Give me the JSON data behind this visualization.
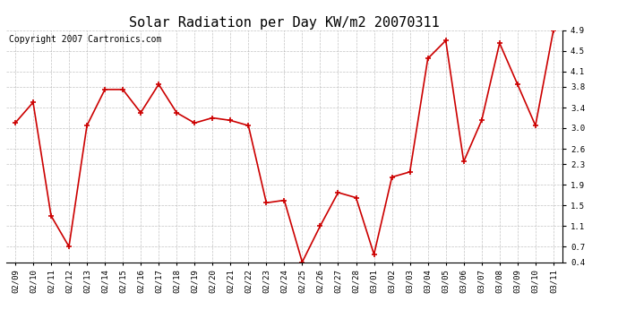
{
  "title": "Solar Radiation per Day KW/m2 20070311",
  "copyright": "Copyright 2007 Cartronics.com",
  "labels": [
    "02/09",
    "02/10",
    "02/11",
    "02/12",
    "02/13",
    "02/14",
    "02/15",
    "02/16",
    "02/17",
    "02/18",
    "02/19",
    "02/20",
    "02/21",
    "02/22",
    "02/23",
    "02/24",
    "02/25",
    "02/26",
    "02/27",
    "02/28",
    "03/01",
    "03/02",
    "03/03",
    "03/04",
    "03/05",
    "03/06",
    "03/07",
    "03/08",
    "03/09",
    "03/10",
    "03/11"
  ],
  "values": [
    3.1,
    3.5,
    1.3,
    0.7,
    3.05,
    3.75,
    3.75,
    3.3,
    3.85,
    3.3,
    3.1,
    3.2,
    3.15,
    3.05,
    1.55,
    1.6,
    0.4,
    1.1,
    1.75,
    1.65,
    0.55,
    2.05,
    2.15,
    4.35,
    4.7,
    2.35,
    3.15,
    4.65,
    3.85,
    3.05,
    4.9
  ],
  "line_color": "#cc0000",
  "marker": "+",
  "marker_size": 4,
  "line_width": 1.2,
  "bg_color": "#ffffff",
  "grid_color": "#aaaaaa",
  "ylim": [
    0.4,
    4.9
  ],
  "yticks": [
    0.4,
    0.7,
    1.1,
    1.5,
    1.9,
    2.3,
    2.6,
    3.0,
    3.4,
    3.8,
    4.1,
    4.5,
    4.9
  ],
  "title_fontsize": 11,
  "copyright_fontsize": 7,
  "tick_fontsize": 6.5
}
